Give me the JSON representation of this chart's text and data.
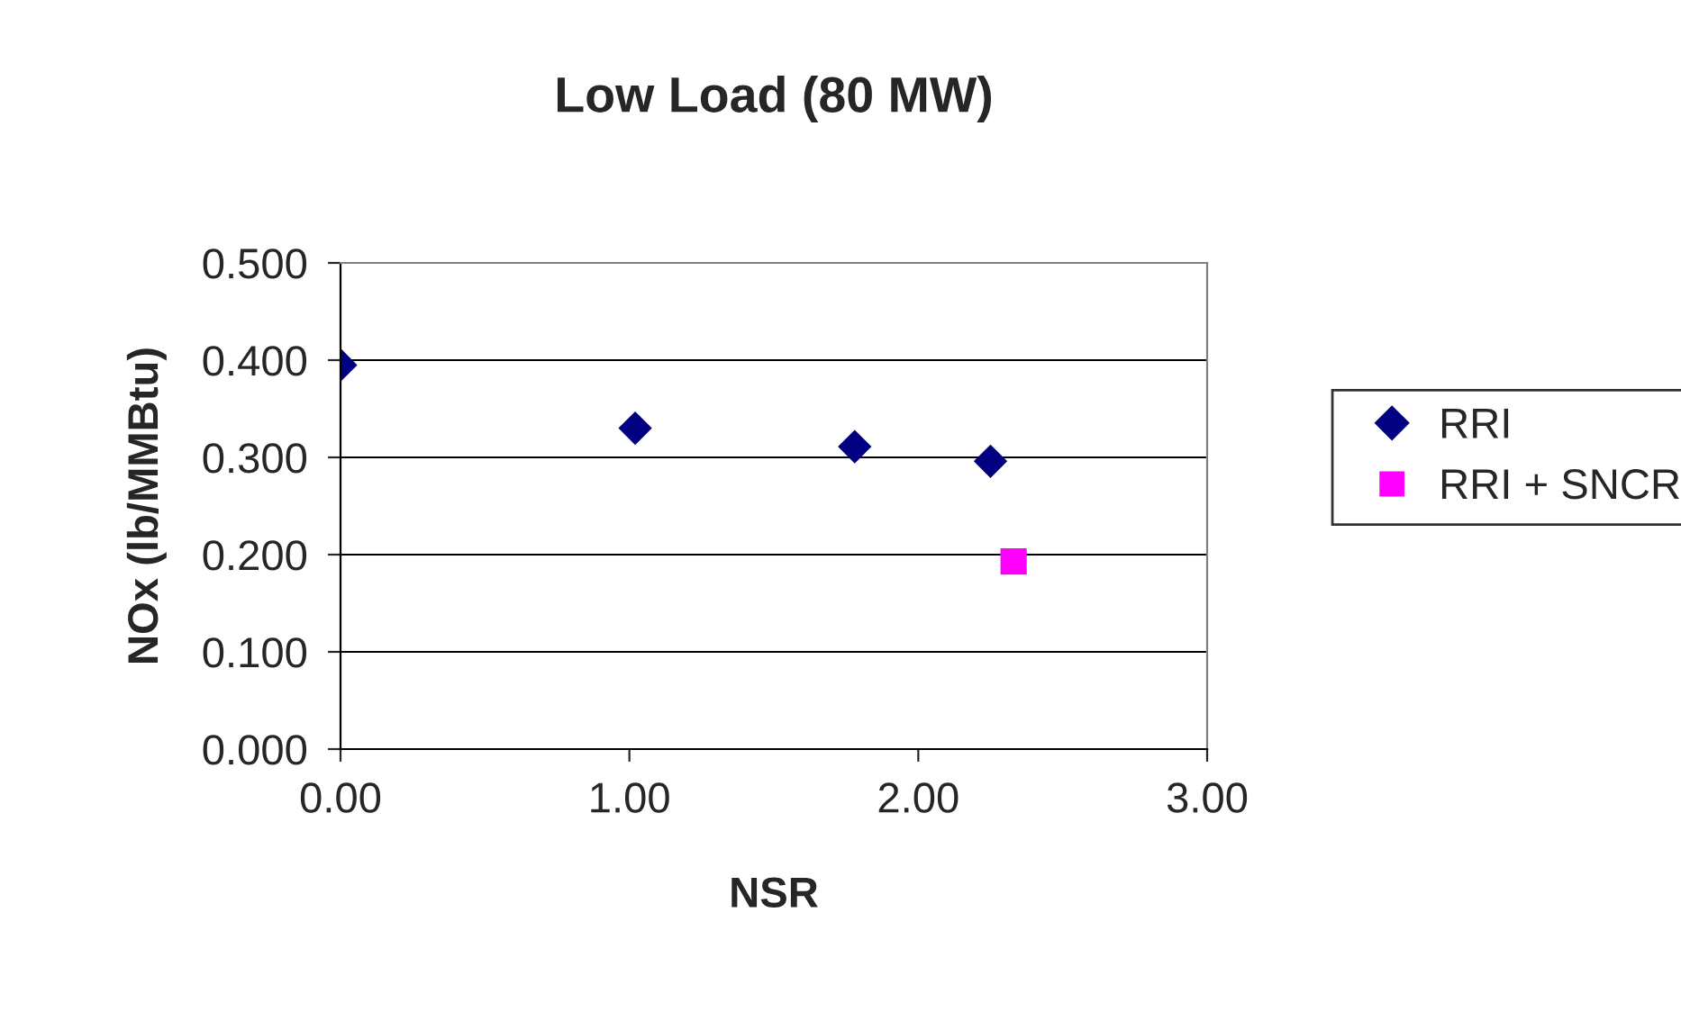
{
  "chart_data": {
    "type": "scatter",
    "title": "Low Load (80 MW)",
    "xlabel": "NSR",
    "ylabel": "NOx (lb/MMBtu)",
    "series": [
      {
        "name": "RRI",
        "color": "#000080",
        "marker": "diamond",
        "x": [
          0.0,
          1.02,
          1.78,
          2.25
        ],
        "values": [
          0.395,
          0.33,
          0.311,
          0.296
        ]
      },
      {
        "name": "RRI + SNCR",
        "color": "#ff00ff",
        "marker": "square",
        "x": [
          2.33
        ],
        "values": [
          0.193
        ]
      }
    ],
    "xlim": [
      0,
      3
    ],
    "xticks": [
      {
        "value": 0,
        "label": "0.00"
      },
      {
        "value": 1,
        "label": "1.00"
      },
      {
        "value": 2,
        "label": "2.00"
      },
      {
        "value": 3,
        "label": "3.00"
      }
    ],
    "ylim": [
      0,
      0.5
    ],
    "yticks": [
      {
        "value": 0,
        "label": "0.000"
      },
      {
        "value": 0.1,
        "label": "0.100"
      },
      {
        "value": 0.2,
        "label": "0.200"
      },
      {
        "value": 0.3,
        "label": "0.300"
      },
      {
        "value": 0.4,
        "label": "0.400"
      },
      {
        "value": 0.5,
        "label": "0.500"
      }
    ],
    "grid": "y",
    "legend": "right"
  }
}
